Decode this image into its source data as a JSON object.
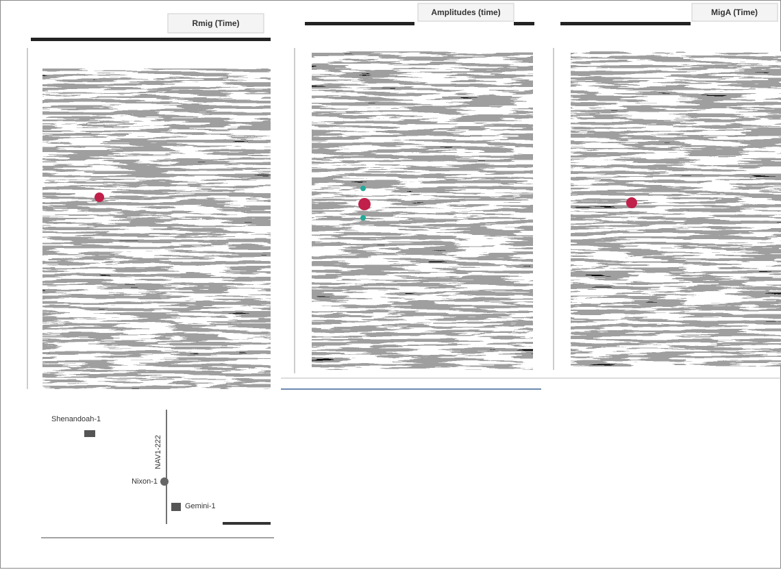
{
  "panels": [
    {
      "title": "Rmig (Time)"
    },
    {
      "title": "Amplitudes (time)"
    },
    {
      "title": "MigA (Time)"
    }
  ],
  "map": {
    "line_label": "NAV1-222",
    "wells": [
      {
        "label": "Shenandoah-1"
      },
      {
        "label": "Nixon-1"
      },
      {
        "label": "Gemini-1"
      }
    ]
  }
}
